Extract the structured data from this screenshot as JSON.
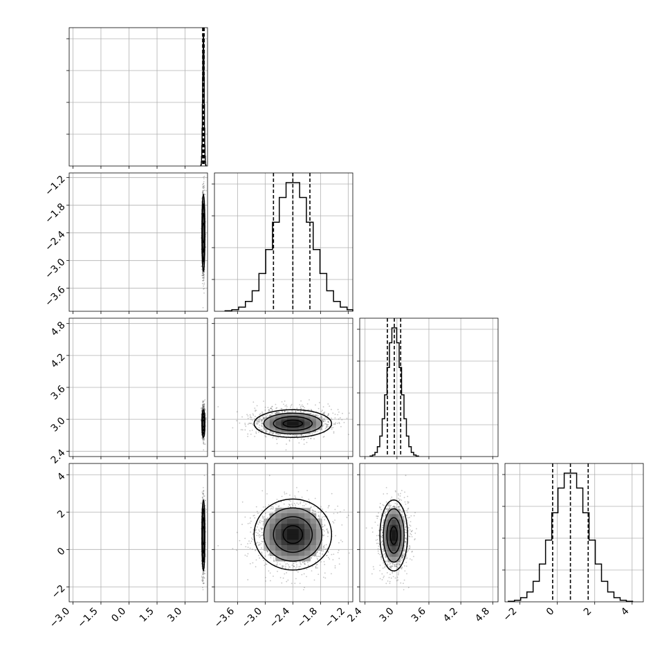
{
  "chart_data": {
    "type": "corner",
    "parameters": 4,
    "grid": true,
    "histogram_bins": 20,
    "axes": [
      {
        "range": [
          -3.2,
          4.2
        ],
        "ticks": [
          -3.0,
          -1.5,
          0.0,
          1.5,
          3.0
        ],
        "tick_labels": [
          "−3.0",
          "−1.5",
          "0.0",
          "1.5",
          "3.0"
        ]
      },
      {
        "range": [
          -4.1,
          -1.1
        ],
        "ticks": [
          -3.6,
          -3.0,
          -2.4,
          -1.8,
          -1.2
        ],
        "tick_labels": [
          "−3.6",
          "−3.0",
          "−2.4",
          "−1.8",
          "−1.2"
        ]
      },
      {
        "range": [
          2.3,
          4.9
        ],
        "ticks": [
          2.4,
          3.0,
          3.6,
          4.2,
          4.8
        ],
        "tick_labels": [
          "2.4",
          "3.0",
          "3.6",
          "4.2",
          "4.8"
        ]
      },
      {
        "range": [
          -2.8,
          4.6
        ],
        "ticks": [
          -2,
          0,
          2,
          4
        ],
        "tick_labels": [
          "−2",
          "0",
          "2",
          "4"
        ]
      }
    ],
    "marginals": [
      {
        "param": 0,
        "mean": 3.98,
        "sd": 0.04,
        "quantiles": [
          3.94,
          3.98,
          4.02
        ]
      },
      {
        "param": 1,
        "mean": -2.4,
        "sd": 0.42,
        "quantiles": [
          -2.82,
          -2.4,
          -2.03
        ]
      },
      {
        "param": 2,
        "mean": 2.95,
        "sd": 0.13,
        "quantiles": [
          2.82,
          2.95,
          3.07
        ]
      },
      {
        "param": 3,
        "mean": 0.7,
        "sd": 0.95,
        "quantiles": [
          -0.25,
          0.7,
          1.65
        ]
      }
    ],
    "joint": [
      {
        "x": 0,
        "y": 1,
        "center": [
          3.98,
          -2.4
        ]
      },
      {
        "x": 0,
        "y": 2,
        "center": [
          3.98,
          2.92
        ]
      },
      {
        "x": 1,
        "y": 2,
        "center": [
          -2.4,
          2.92
        ]
      },
      {
        "x": 0,
        "y": 3,
        "center": [
          3.98,
          0.75
        ]
      },
      {
        "x": 1,
        "y": 3,
        "center": [
          -2.4,
          0.8
        ]
      },
      {
        "x": 2,
        "y": 3,
        "center": [
          2.94,
          0.75
        ]
      }
    ]
  }
}
